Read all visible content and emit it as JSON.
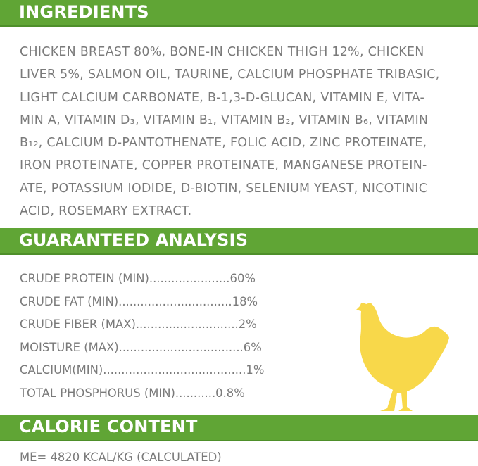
{
  "sections": {
    "ingredients_title": "INGREDIENTS",
    "analysis_title": "GUARANTEED ANALYSIS",
    "calorie_title": "CALORIE CONTENT"
  },
  "ingredients": {
    "lines": [
      "CHICKEN BREAST 80%, BONE-IN CHICKEN THIGH 12%, CHICKEN",
      "LIVER 5%, SALMON OIL, TAURINE, CALCIUM PHOSPHATE TRIBASIC,",
      "LIGHT CALCIUM CARBONATE, B-1,3-D-GLUCAN, VITAMIN E, VITA-",
      "MIN A, VITAMIN D₃, VITAMIN B₁, VITAMIN B₂, VITAMIN B₆, VITAMIN",
      "B₁₂, CALCIUM D-PANTOTHENATE, FOLIC ACID, ZINC PROTEINATE,",
      "IRON PROTEINATE, COPPER PROTEINATE, MANGANESE PROTEIN-",
      "ATE, POTASSIUM IODIDE, D-BIOTIN, SELENIUM YEAST, NICOTINIC",
      "ACID, ROSEMARY EXTRACT."
    ]
  },
  "analysis": [
    "CRUDE PROTEIN (MIN)......................60%",
    "CRUDE FAT (MIN)...............................18%",
    "CRUDE FIBER (MAX)............................2%",
    "MOISTURE (MAX)..................................6%",
    "CALCIUM(MIN).......................................1%",
    "TOTAL PHOSPHORUS (MIN)...........0.8%"
  ],
  "calorie": "ME= 4820 KCAL/KG (CALCULATED)",
  "colors": {
    "header": "#60a535",
    "text": "#7a7a7a",
    "chicken": "#f8d84a"
  },
  "icons": {
    "chicken": "chicken-silhouette-icon"
  }
}
